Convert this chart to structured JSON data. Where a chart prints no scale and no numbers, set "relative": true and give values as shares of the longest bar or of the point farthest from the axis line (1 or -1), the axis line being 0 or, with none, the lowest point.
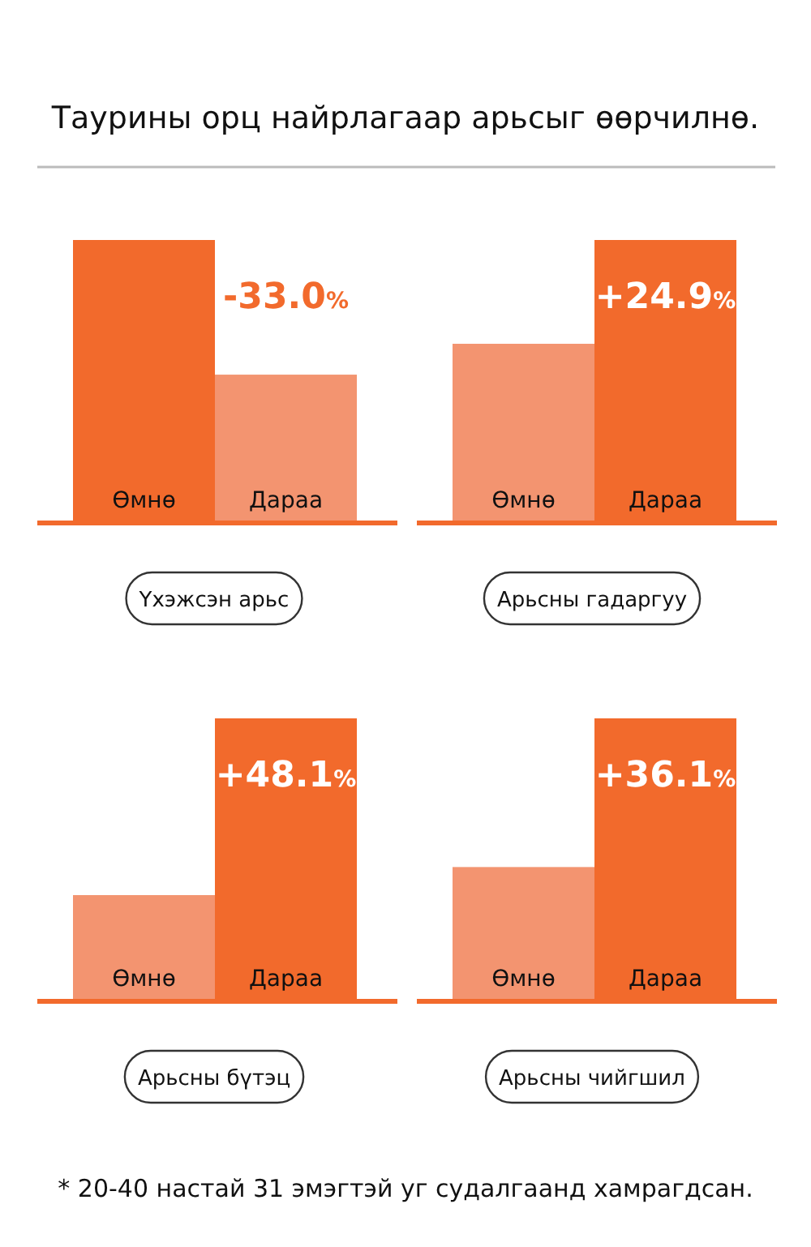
{
  "chart_data": [
    {
      "type": "bar",
      "title": "Таурины орц найрлагаар арьсыг өөрчилнө.",
      "relative": true,
      "xlabel": "Үхэжсэн арьс",
      "categories": [
        "Өмнө",
        "Дараа"
      ],
      "values": [
        1,
        0.52
      ],
      "colors": [
        "#f26a2c",
        "#f39470"
      ],
      "annotations": [
        "-33.0%"
      ]
    },
    {
      "type": "bar",
      "relative": true,
      "xlabel": "Арьсны гадаргуу",
      "categories": [
        "Өмнө",
        "Дараа"
      ],
      "values": [
        0.63,
        1
      ],
      "colors": [
        "#f39470",
        "#f26a2c"
      ],
      "annotations": [
        "+24.9%"
      ]
    },
    {
      "type": "bar",
      "relative": true,
      "xlabel": "Арьсны бүтэц",
      "categories": [
        "Өмнө",
        "Дараа"
      ],
      "values": [
        0.37,
        1
      ],
      "colors": [
        "#f39470",
        "#f26a2c"
      ],
      "annotations": [
        "+48.1%"
      ]
    },
    {
      "type": "bar",
      "relative": true,
      "xlabel": "Арьсны чийгшил",
      "categories": [
        "Өмнө",
        "Дараа"
      ],
      "values": [
        0.47,
        1
      ],
      "colors": [
        "#f39470",
        "#f26a2c"
      ],
      "annotations": [
        "+36.1%",
        "* 20-40 настай 31 эмэгтэй уг судалгаанд хамрагдсан."
      ]
    }
  ]
}
